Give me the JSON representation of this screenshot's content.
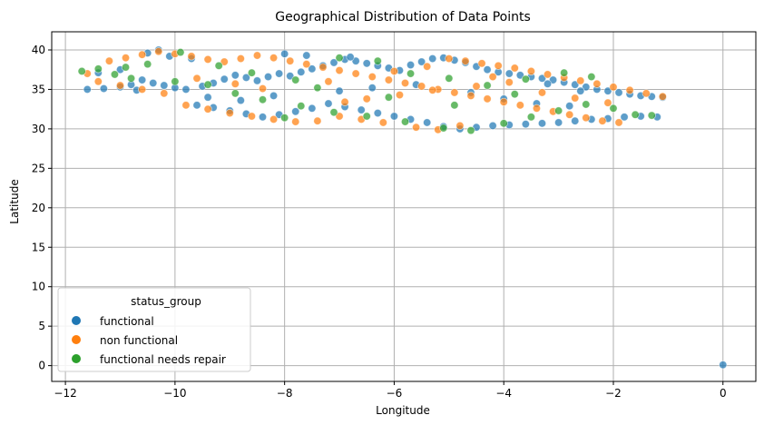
{
  "chart_data": {
    "type": "scatter",
    "title": "Geographical Distribution of Data Points",
    "xlabel": "Longitude",
    "ylabel": "Latitude",
    "xlim": [
      -12.25,
      0.6
    ],
    "ylim": [
      -2.0,
      42.3
    ],
    "xticks": [
      -12,
      -10,
      -8,
      -6,
      -4,
      -2,
      0
    ],
    "yticks": [
      0,
      5,
      10,
      15,
      20,
      25,
      30,
      35,
      40
    ],
    "grid": true,
    "legend": {
      "title": "status_group",
      "position": "lower-left"
    },
    "series": [
      {
        "name": "functional",
        "color": "#1f77b4",
        "points": [
          [
            -11.6,
            35.0
          ],
          [
            -11.3,
            35.1
          ],
          [
            -11.0,
            35.3
          ],
          [
            -10.8,
            35.6
          ],
          [
            -10.6,
            36.2
          ],
          [
            -10.4,
            35.8
          ],
          [
            -10.2,
            35.5
          ],
          [
            -10.0,
            35.2
          ],
          [
            -9.8,
            35.0
          ],
          [
            -9.5,
            35.4
          ],
          [
            -9.3,
            35.8
          ],
          [
            -9.1,
            36.3
          ],
          [
            -8.9,
            36.8
          ],
          [
            -8.7,
            36.5
          ],
          [
            -8.5,
            36.1
          ],
          [
            -8.3,
            36.6
          ],
          [
            -8.1,
            37.0
          ],
          [
            -7.9,
            36.7
          ],
          [
            -7.7,
            37.2
          ],
          [
            -7.5,
            37.6
          ],
          [
            -7.3,
            38.0
          ],
          [
            -7.1,
            38.4
          ],
          [
            -6.9,
            38.8
          ],
          [
            -6.7,
            38.6
          ],
          [
            -6.5,
            38.3
          ],
          [
            -6.3,
            38.0
          ],
          [
            -6.1,
            37.7
          ],
          [
            -5.9,
            37.4
          ],
          [
            -5.7,
            38.1
          ],
          [
            -5.5,
            38.5
          ],
          [
            -5.3,
            38.9
          ],
          [
            -5.1,
            39.0
          ],
          [
            -4.9,
            38.7
          ],
          [
            -4.7,
            38.4
          ],
          [
            -4.5,
            37.9
          ],
          [
            -4.3,
            37.5
          ],
          [
            -4.1,
            37.2
          ],
          [
            -3.9,
            37.0
          ],
          [
            -3.7,
            36.8
          ],
          [
            -3.5,
            36.6
          ],
          [
            -3.3,
            36.4
          ],
          [
            -3.1,
            36.2
          ],
          [
            -2.9,
            35.9
          ],
          [
            -2.7,
            35.6
          ],
          [
            -2.5,
            35.3
          ],
          [
            -2.3,
            35.0
          ],
          [
            -2.1,
            34.8
          ],
          [
            -1.9,
            34.6
          ],
          [
            -1.7,
            34.4
          ],
          [
            -1.5,
            34.2
          ],
          [
            -1.3,
            34.1
          ],
          [
            -1.1,
            34.0
          ],
          [
            -1.5,
            31.6
          ],
          [
            -1.8,
            31.5
          ],
          [
            -2.1,
            31.3
          ],
          [
            -2.4,
            31.2
          ],
          [
            -2.7,
            31.0
          ],
          [
            -3.0,
            30.8
          ],
          [
            -3.3,
            30.7
          ],
          [
            -3.6,
            30.6
          ],
          [
            -3.9,
            30.5
          ],
          [
            -4.2,
            30.4
          ],
          [
            -4.5,
            30.2
          ],
          [
            -4.8,
            30.0
          ],
          [
            -5.1,
            30.3
          ],
          [
            -5.4,
            30.8
          ],
          [
            -5.7,
            31.2
          ],
          [
            -6.0,
            31.6
          ],
          [
            -6.3,
            32.0
          ],
          [
            -6.6,
            32.4
          ],
          [
            -6.9,
            32.8
          ],
          [
            -7.2,
            33.2
          ],
          [
            -7.5,
            32.6
          ],
          [
            -7.8,
            32.2
          ],
          [
            -8.1,
            31.8
          ],
          [
            -8.4,
            31.5
          ],
          [
            -8.7,
            31.9
          ],
          [
            -9.0,
            32.3
          ],
          [
            -9.3,
            32.7
          ],
          [
            -9.6,
            33.0
          ],
          [
            -10.3,
            40.0
          ],
          [
            -10.5,
            39.6
          ],
          [
            -10.1,
            39.2
          ],
          [
            -9.7,
            38.9
          ],
          [
            -11.4,
            37.1
          ],
          [
            -11.0,
            37.5
          ],
          [
            -10.7,
            34.9
          ],
          [
            -8.0,
            39.5
          ],
          [
            -7.6,
            39.3
          ],
          [
            -6.8,
            39.1
          ],
          [
            -4.6,
            34.6
          ],
          [
            -4.0,
            33.8
          ],
          [
            -3.4,
            33.2
          ],
          [
            -2.8,
            32.9
          ],
          [
            -5.6,
            35.6
          ],
          [
            -6.4,
            35.2
          ],
          [
            -7.0,
            34.8
          ],
          [
            -8.2,
            34.2
          ],
          [
            -8.8,
            33.6
          ],
          [
            -9.4,
            34.0
          ],
          [
            -3.2,
            35.7
          ],
          [
            -2.6,
            34.8
          ],
          [
            -1.2,
            31.5
          ],
          [
            0.0,
            0.1
          ]
        ]
      },
      {
        "name": "non functional",
        "color": "#ff7f0e",
        "points": [
          [
            -11.2,
            38.6
          ],
          [
            -10.9,
            39.0
          ],
          [
            -10.6,
            39.4
          ],
          [
            -10.3,
            39.8
          ],
          [
            -10.0,
            39.5
          ],
          [
            -9.7,
            39.2
          ],
          [
            -9.4,
            38.8
          ],
          [
            -9.1,
            38.5
          ],
          [
            -8.8,
            38.9
          ],
          [
            -8.5,
            39.3
          ],
          [
            -8.2,
            39.0
          ],
          [
            -7.9,
            38.6
          ],
          [
            -7.6,
            38.2
          ],
          [
            -7.3,
            37.8
          ],
          [
            -7.0,
            37.4
          ],
          [
            -6.7,
            37.0
          ],
          [
            -6.4,
            36.6
          ],
          [
            -6.1,
            36.2
          ],
          [
            -5.8,
            35.8
          ],
          [
            -5.5,
            35.4
          ],
          [
            -5.2,
            35.0
          ],
          [
            -4.9,
            34.6
          ],
          [
            -4.6,
            34.2
          ],
          [
            -4.3,
            33.8
          ],
          [
            -4.0,
            33.4
          ],
          [
            -3.7,
            33.0
          ],
          [
            -3.4,
            32.6
          ],
          [
            -3.1,
            32.2
          ],
          [
            -2.8,
            31.8
          ],
          [
            -2.5,
            31.4
          ],
          [
            -2.2,
            31.0
          ],
          [
            -1.9,
            30.8
          ],
          [
            -1.1,
            34.1
          ],
          [
            -1.4,
            34.5
          ],
          [
            -1.7,
            34.9
          ],
          [
            -2.0,
            35.3
          ],
          [
            -2.3,
            35.7
          ],
          [
            -2.6,
            36.1
          ],
          [
            -2.9,
            36.5
          ],
          [
            -3.2,
            36.9
          ],
          [
            -3.5,
            37.3
          ],
          [
            -3.8,
            37.7
          ],
          [
            -4.1,
            38.0
          ],
          [
            -4.4,
            38.3
          ],
          [
            -4.7,
            38.6
          ],
          [
            -5.0,
            38.9
          ],
          [
            -5.6,
            30.2
          ],
          [
            -5.2,
            29.9
          ],
          [
            -4.8,
            30.4
          ],
          [
            -6.2,
            30.8
          ],
          [
            -6.6,
            31.2
          ],
          [
            -7.0,
            31.6
          ],
          [
            -7.4,
            31.0
          ],
          [
            -7.8,
            30.9
          ],
          [
            -8.2,
            31.2
          ],
          [
            -8.6,
            31.6
          ],
          [
            -9.0,
            32.0
          ],
          [
            -9.4,
            32.5
          ],
          [
            -9.8,
            33.0
          ],
          [
            -10.2,
            34.5
          ],
          [
            -10.6,
            35.0
          ],
          [
            -11.0,
            35.5
          ],
          [
            -11.4,
            36.0
          ],
          [
            -11.6,
            37.0
          ],
          [
            -6.9,
            33.4
          ],
          [
            -6.5,
            33.8
          ],
          [
            -5.9,
            34.3
          ],
          [
            -5.3,
            34.9
          ],
          [
            -4.5,
            35.4
          ],
          [
            -3.9,
            35.9
          ],
          [
            -3.3,
            34.6
          ],
          [
            -2.7,
            33.9
          ],
          [
            -2.1,
            33.3
          ],
          [
            -8.4,
            35.1
          ],
          [
            -8.9,
            35.7
          ],
          [
            -9.6,
            36.4
          ],
          [
            -7.2,
            36.0
          ],
          [
            -6.0,
            37.3
          ],
          [
            -5.4,
            37.9
          ],
          [
            -4.2,
            36.6
          ]
        ]
      },
      {
        "name": "functional needs repair",
        "color": "#2ca02c",
        "points": [
          [
            -11.7,
            37.3
          ],
          [
            -11.4,
            37.6
          ],
          [
            -11.1,
            36.9
          ],
          [
            -10.8,
            36.4
          ],
          [
            -10.5,
            38.2
          ],
          [
            -10.0,
            36.0
          ],
          [
            -9.4,
            35.6
          ],
          [
            -8.9,
            34.5
          ],
          [
            -8.4,
            33.7
          ],
          [
            -7.7,
            32.9
          ],
          [
            -7.1,
            32.1
          ],
          [
            -6.5,
            31.6
          ],
          [
            -5.8,
            30.9
          ],
          [
            -5.1,
            30.1
          ],
          [
            -4.6,
            29.8
          ],
          [
            -4.0,
            30.7
          ],
          [
            -3.5,
            31.5
          ],
          [
            -3.0,
            32.3
          ],
          [
            -2.5,
            33.1
          ],
          [
            -2.0,
            32.6
          ],
          [
            -1.6,
            31.8
          ],
          [
            -1.3,
            31.7
          ],
          [
            -2.9,
            37.1
          ],
          [
            -3.6,
            36.3
          ],
          [
            -4.3,
            35.5
          ],
          [
            -5.0,
            36.4
          ],
          [
            -5.7,
            37.0
          ],
          [
            -6.3,
            38.6
          ],
          [
            -7.0,
            39.0
          ],
          [
            -7.8,
            36.2
          ],
          [
            -8.6,
            37.1
          ],
          [
            -9.2,
            38.0
          ],
          [
            -2.4,
            36.6
          ],
          [
            -3.8,
            34.4
          ],
          [
            -4.9,
            33.0
          ],
          [
            -6.1,
            34.0
          ],
          [
            -7.4,
            35.2
          ],
          [
            -8.0,
            31.4
          ],
          [
            -9.9,
            39.7
          ],
          [
            -10.9,
            37.8
          ]
        ]
      }
    ]
  }
}
